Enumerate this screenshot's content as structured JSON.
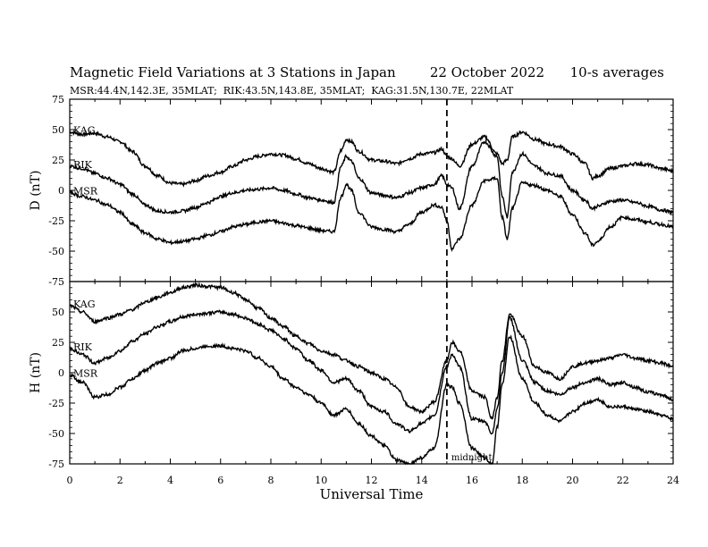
{
  "header": {
    "title": "Magnetic Field Variations at 3 Stations in Japan",
    "date": "22 October 2022",
    "averaging": "10-s averages",
    "stations": "MSR:44.4N,142.3E, 35MLAT;  RIK:43.5N,143.8E, 35MLAT;  KAG:31.5N,130.7E, 22MLAT"
  },
  "chart_data": [
    {
      "type": "line",
      "panel": "D",
      "ylabel": "D (nT)",
      "xlabel": "Universal Time",
      "xlim": [
        0,
        24
      ],
      "ylim": [
        -75,
        75
      ],
      "xticks": [
        0,
        2,
        4,
        6,
        8,
        10,
        12,
        14,
        16,
        18,
        20,
        22,
        24
      ],
      "yticks": [
        -75,
        -50,
        -25,
        0,
        25,
        50,
        75
      ],
      "vline": 15,
      "series": [
        {
          "name": "KAG",
          "x": [
            0,
            0.5,
            1,
            1.5,
            2,
            2.5,
            3,
            3.5,
            4,
            4.5,
            5,
            5.5,
            6,
            6.5,
            7,
            7.5,
            8,
            8.5,
            9,
            9.5,
            10,
            10.5,
            10.8,
            11,
            11.2,
            11.5,
            12,
            12.5,
            13,
            13.5,
            14,
            14.5,
            14.8,
            15,
            15.2,
            15.5,
            16,
            16.5,
            17,
            17.2,
            17.4,
            17.6,
            18,
            18.5,
            19,
            19.5,
            20,
            20.5,
            20.8,
            21,
            21.5,
            22,
            22.5,
            23,
            23.5,
            24
          ],
          "y": [
            48,
            46,
            47,
            44,
            40,
            32,
            20,
            12,
            6,
            5,
            8,
            12,
            15,
            20,
            25,
            28,
            30,
            29,
            26,
            22,
            18,
            15,
            33,
            42,
            40,
            32,
            25,
            24,
            22,
            26,
            30,
            31,
            34,
            28,
            26,
            20,
            38,
            44,
            30,
            22,
            25,
            44,
            48,
            42,
            38,
            36,
            30,
            22,
            10,
            12,
            18,
            20,
            22,
            21,
            18,
            16
          ]
        },
        {
          "name": "RIK",
          "x": [
            0,
            0.5,
            1,
            1.5,
            2,
            2.5,
            3,
            3.5,
            4,
            4.5,
            5,
            5.5,
            6,
            6.5,
            7,
            7.5,
            8,
            8.5,
            9,
            9.5,
            10,
            10.5,
            10.8,
            11,
            11.2,
            11.5,
            12,
            12.5,
            13,
            13.5,
            14,
            14.5,
            14.8,
            15,
            15.2,
            15.5,
            16,
            16.5,
            17,
            17.2,
            17.4,
            17.6,
            18,
            18.5,
            19,
            19.5,
            20,
            20.5,
            20.8,
            21,
            21.5,
            22,
            22.5,
            23,
            23.5,
            24
          ],
          "y": [
            20,
            18,
            14,
            10,
            5,
            -3,
            -12,
            -17,
            -18,
            -17,
            -14,
            -10,
            -5,
            -2,
            0,
            1,
            2,
            0,
            -3,
            -6,
            -8,
            -10,
            20,
            28,
            24,
            10,
            -2,
            -4,
            -6,
            -2,
            2,
            5,
            12,
            5,
            2,
            -15,
            20,
            40,
            28,
            -5,
            -22,
            15,
            30,
            20,
            14,
            12,
            0,
            -8,
            -15,
            -13,
            -9,
            -8,
            -10,
            -13,
            -16,
            -18
          ]
        },
        {
          "name": "MSR",
          "x": [
            0,
            0.5,
            1,
            1.5,
            2,
            2.5,
            3,
            3.5,
            4,
            4.5,
            5,
            5.5,
            6,
            6.5,
            7,
            7.5,
            8,
            8.5,
            9,
            9.5,
            10,
            10.5,
            10.8,
            11,
            11.2,
            11.5,
            12,
            12.5,
            13,
            13.5,
            14,
            14.5,
            14.8,
            15,
            15.2,
            15.5,
            16,
            16.5,
            17,
            17.2,
            17.4,
            17.6,
            18,
            18.5,
            19,
            19.5,
            20,
            20.5,
            20.8,
            21,
            21.5,
            22,
            22.5,
            23,
            23.5,
            24
          ],
          "y": [
            -2,
            -5,
            -8,
            -12,
            -18,
            -28,
            -35,
            -40,
            -43,
            -42,
            -40,
            -37,
            -34,
            -30,
            -28,
            -26,
            -25,
            -27,
            -29,
            -31,
            -33,
            -34,
            -5,
            5,
            0,
            -18,
            -30,
            -32,
            -34,
            -28,
            -18,
            -12,
            -14,
            -25,
            -48,
            -40,
            -12,
            8,
            10,
            -22,
            -40,
            -15,
            6,
            4,
            0,
            -5,
            -20,
            -35,
            -45,
            -42,
            -30,
            -22,
            -24,
            -26,
            -28,
            -30
          ]
        }
      ]
    },
    {
      "type": "line",
      "panel": "H",
      "ylabel": "H (nT)",
      "xlabel": "Universal Time",
      "xlim": [
        0,
        24
      ],
      "ylim": [
        -75,
        75
      ],
      "xticks": [
        0,
        2,
        4,
        6,
        8,
        10,
        12,
        14,
        16,
        18,
        20,
        22,
        24
      ],
      "yticks": [
        -75,
        -50,
        -25,
        0,
        25,
        50
      ],
      "vline": 15,
      "annotation": "midnight",
      "series": [
        {
          "name": "KAG",
          "x": [
            0,
            0.5,
            1,
            1.5,
            2,
            2.5,
            3,
            3.5,
            4,
            4.5,
            5,
            5.5,
            6,
            6.5,
            7,
            7.5,
            8,
            8.5,
            9,
            9.5,
            10,
            10.5,
            11,
            11.5,
            12,
            12.5,
            13,
            13.5,
            14,
            14.5,
            15,
            15.2,
            15.5,
            16,
            16.5,
            16.8,
            17,
            17.2,
            17.5,
            18,
            18.5,
            19,
            19.5,
            20,
            20.5,
            21,
            21.5,
            22,
            22.5,
            23,
            23.5,
            24
          ],
          "y": [
            55,
            50,
            42,
            45,
            48,
            52,
            58,
            62,
            66,
            70,
            72,
            71,
            70,
            66,
            60,
            53,
            45,
            38,
            30,
            24,
            18,
            15,
            10,
            5,
            0,
            -5,
            -12,
            -28,
            -32,
            -24,
            10,
            25,
            18,
            -15,
            -20,
            -38,
            -20,
            10,
            48,
            30,
            5,
            0,
            -5,
            5,
            8,
            10,
            12,
            15,
            12,
            10,
            8,
            5
          ]
        },
        {
          "name": "RIK",
          "x": [
            0,
            0.5,
            1,
            1.5,
            2,
            2.5,
            3,
            3.5,
            4,
            4.5,
            5,
            5.5,
            6,
            6.5,
            7,
            7.5,
            8,
            8.5,
            9,
            9.5,
            10,
            10.5,
            11,
            11.5,
            12,
            12.5,
            13,
            13.5,
            14,
            14.5,
            15,
            15.2,
            15.5,
            16,
            16.5,
            16.8,
            17,
            17.2,
            17.5,
            18,
            18.5,
            19,
            19.5,
            20,
            20.5,
            21,
            21.5,
            22,
            22.5,
            23,
            23.5,
            24
          ],
          "y": [
            20,
            15,
            8,
            12,
            18,
            26,
            32,
            38,
            42,
            46,
            48,
            49,
            50,
            48,
            45,
            40,
            35,
            28,
            20,
            10,
            2,
            -8,
            -5,
            -15,
            -28,
            -32,
            -42,
            -48,
            -42,
            -35,
            5,
            15,
            5,
            -38,
            -40,
            -50,
            -30,
            0,
            45,
            10,
            -8,
            -15,
            -18,
            -12,
            -8,
            -5,
            -10,
            -8,
            -12,
            -16,
            -18,
            -22
          ]
        },
        {
          "name": "MSR",
          "x": [
            0,
            0.5,
            1,
            1.5,
            2,
            2.5,
            3,
            3.5,
            4,
            4.5,
            5,
            5.5,
            6,
            6.5,
            7,
            7.5,
            8,
            8.5,
            9,
            9.5,
            10,
            10.5,
            11,
            11.5,
            12,
            12.5,
            13,
            13.5,
            14,
            14.5,
            15,
            15.2,
            15.5,
            16,
            16.5,
            16.8,
            17,
            17.2,
            17.5,
            18,
            18.5,
            19,
            19.5,
            20,
            20.5,
            21,
            21.5,
            22,
            22.5,
            23,
            23.5,
            24
          ],
          "y": [
            -2,
            -8,
            -20,
            -18,
            -12,
            -5,
            2,
            8,
            12,
            18,
            20,
            22,
            22,
            20,
            18,
            12,
            5,
            -5,
            -12,
            -18,
            -25,
            -35,
            -30,
            -42,
            -52,
            -60,
            -72,
            -75,
            -70,
            -62,
            -10,
            -12,
            -25,
            -62,
            -70,
            -75,
            -45,
            -10,
            30,
            -5,
            -25,
            -35,
            -40,
            -32,
            -25,
            -22,
            -28,
            -28,
            -30,
            -32,
            -35,
            -38
          ]
        }
      ]
    }
  ]
}
